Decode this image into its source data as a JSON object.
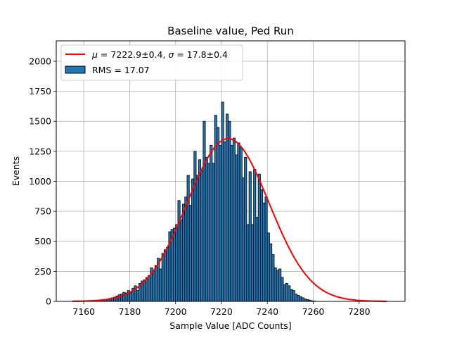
{
  "chart_data": {
    "type": "bar",
    "title": "Baseline value, Ped Run",
    "xlabel": "Sample Value [ADC Counts]",
    "ylabel": "Events",
    "xlim": [
      7148,
      7300
    ],
    "ylim": [
      0,
      2170
    ],
    "x_ticks": [
      7160,
      7180,
      7200,
      7220,
      7240,
      7260,
      7280
    ],
    "y_ticks": [
      0,
      250,
      500,
      750,
      1000,
      1250,
      1500,
      1750,
      2000
    ],
    "grid": true,
    "legend_placement": "upper-left",
    "series": [
      {
        "name": "RMS = 17.07",
        "kind": "histogram",
        "color": "#1f77b4",
        "edgecolor": "#000000",
        "bin_start": 7166,
        "bin_width": 1,
        "values": [
          3,
          3,
          10,
          15,
          20,
          25,
          30,
          35,
          45,
          55,
          60,
          75,
          70,
          90,
          80,
          110,
          130,
          90,
          150,
          170,
          180,
          200,
          215,
          280,
          250,
          300,
          360,
          270,
          400,
          430,
          450,
          580,
          600,
          610,
          640,
          840,
          680,
          810,
          870,
          1050,
          800,
          1020,
          1250,
          1050,
          1180,
          1090,
          1500,
          1200,
          1150,
          1300,
          1150,
          1550,
          1450,
          1300,
          1660,
          1330,
          1560,
          1500,
          1300,
          1360,
          1220,
          1320,
          1280,
          1030,
          1200,
          640,
          1080,
          640,
          1100,
          700,
          1060,
          930,
          820,
          870,
          570,
          480,
          390,
          280,
          260,
          270,
          200,
          140,
          150,
          130,
          100,
          90,
          60,
          50,
          40,
          30,
          20,
          15,
          10,
          5,
          3
        ]
      },
      {
        "name": "$\\mu = 7222.9\\pm0.4$, $\\sigma = 17.8\\pm0.4$",
        "kind": "gaussian-fit",
        "color": "#ff0000",
        "mu": 7222.9,
        "sigma": 17.8,
        "amplitude": 1355,
        "x_range": [
          7155,
          7292
        ]
      }
    ],
    "legend": {
      "fit_mu_label": "μ",
      "fit_mu_text": " = 7222.9±0.4, ",
      "fit_sigma_label": "σ",
      "fit_sigma_text": " = 17.8±0.4",
      "hist_label": "RMS = 17.07"
    }
  }
}
